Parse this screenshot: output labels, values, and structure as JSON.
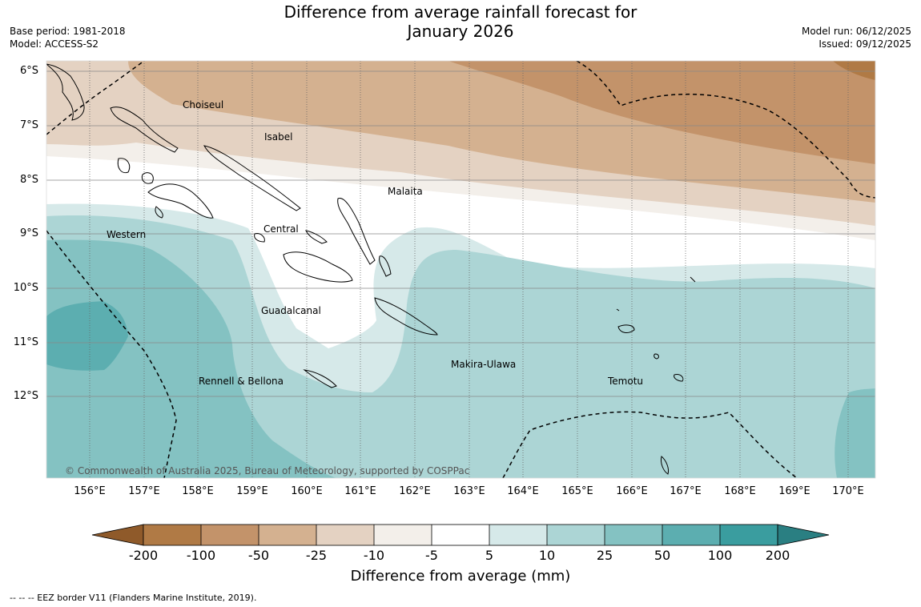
{
  "header": {
    "title_line1": "Difference from average rainfall forecast for",
    "title_line2": "January 2026",
    "base_period": "Base period: 1981-2018",
    "model": "Model: ACCESS-S2",
    "model_run": "Model run: 06/12/2025",
    "issued": "Issued: 09/12/2025"
  },
  "map": {
    "lat_labels": [
      "6°S",
      "7°S",
      "8°S",
      "9°S",
      "10°S",
      "11°S",
      "12°S"
    ],
    "lon_labels": [
      "156°E",
      "157°E",
      "158°E",
      "159°E",
      "160°E",
      "161°E",
      "162°E",
      "163°E",
      "164°E",
      "165°E",
      "166°E",
      "167°E",
      "168°E",
      "169°E",
      "170°E"
    ],
    "regions": {
      "choiseul": "Choiseul",
      "isabel": "Isabel",
      "malaita": "Malaita",
      "western": "Western",
      "central": "Central",
      "guadalcanal": "Guadalcanal",
      "makira": "Makira-Ulawa",
      "rennell": "Rennell & Bellona",
      "temotu": "Temotu"
    },
    "credit": "© Commonwealth of Australia 2025, Bureau of Meteorology, supported by COSPPac"
  },
  "colorbar": {
    "title": "Difference from average (mm)",
    "tick_labels": [
      "-200",
      "-100",
      "-50",
      "-25",
      "-10",
      "-5",
      "5",
      "10",
      "25",
      "50",
      "100",
      "200"
    ],
    "colors": [
      "#8f5a2a",
      "#b07a45",
      "#c3936a",
      "#d4b190",
      "#e4d2c2",
      "#f3efea",
      "#ffffff",
      "#d6e9e9",
      "#acd5d5",
      "#84c2c2",
      "#5caeb0",
      "#3a9d9f",
      "#2a7f82"
    ]
  },
  "footnote": "--  --  -- EEZ border V11 (Flanders Marine Institute, 2019)."
}
